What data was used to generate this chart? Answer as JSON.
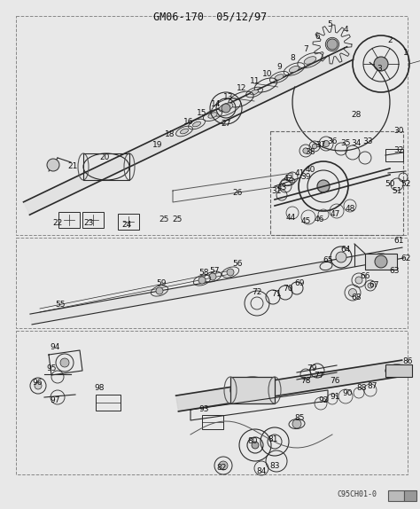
{
  "title": "GM06-170  05/12/97",
  "bottom_right_code": "C95CH01-0",
  "bg_color": "#f0f0f0",
  "fg_color": "#1a1a1a",
  "diagram_color": "#2a2a2a",
  "title_fontsize": 8.5,
  "label_fontsize": 6.5,
  "figsize": [
    4.74,
    5.74
  ],
  "dpi": 100
}
